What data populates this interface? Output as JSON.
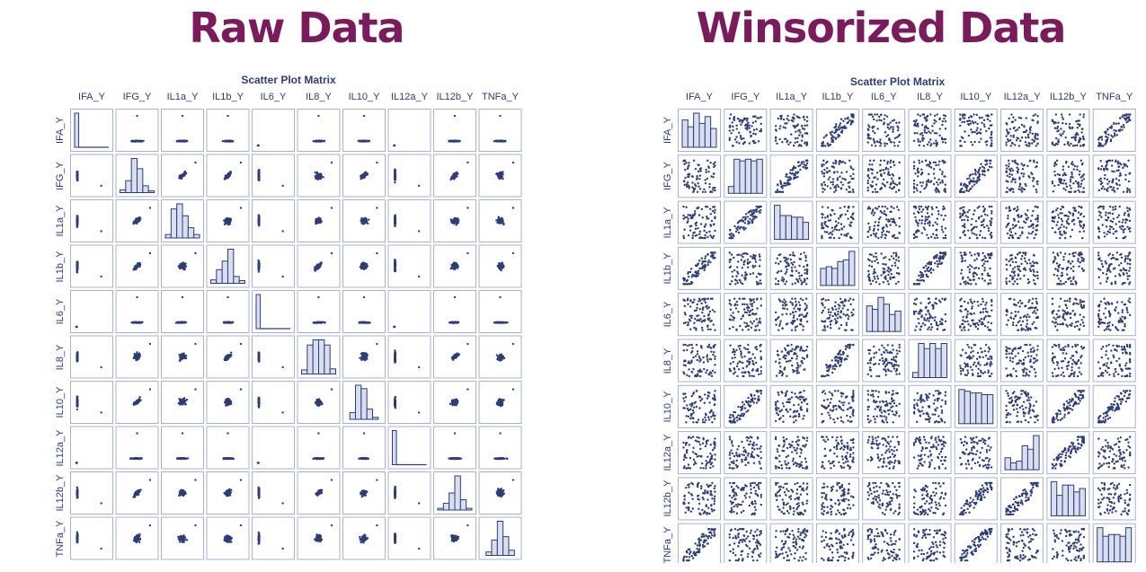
{
  "headings": {
    "left": "Raw Data",
    "right": "Winsorized Data"
  },
  "colors": {
    "heading": "#7a1b5c",
    "plot_ink": "#2d3d78",
    "cell_border": "#a9b1cf",
    "bar_fill": "#d9def0"
  },
  "chart_data": [
    {
      "type": "scatter",
      "subtype": "scatter-plot-matrix",
      "title": "Scatter Plot Matrix",
      "variables": [
        "IFA_Y",
        "IFG_Y",
        "IL1a_Y",
        "IL1b_Y",
        "IL6_Y",
        "IL8_Y",
        "IL10_Y",
        "IL12a_Y",
        "IL12b_Y",
        "TNFa_Y"
      ],
      "diagonal": "histogram",
      "diagonal_histograms": {
        "IFA_Y": [
          1.0,
          0.03,
          0.01,
          0,
          0,
          0,
          0,
          0,
          0,
          0
        ],
        "IFG_Y": [
          0.08,
          0.35,
          1.0,
          0.7,
          0.2,
          0.05
        ],
        "IL1a_Y": [
          0.1,
          0.85,
          1.0,
          0.65,
          0.3,
          0.1
        ],
        "IL1b_Y": [
          0.1,
          0.4,
          0.65,
          1.0,
          0.2,
          0.08
        ],
        "IL6_Y": [
          1.0,
          0.02,
          0.01,
          0,
          0,
          0,
          0,
          0,
          0,
          0
        ],
        "IL8_Y": [
          0.12,
          0.85,
          1.0,
          1.0,
          0.85,
          0.15
        ],
        "IL10_Y": [
          0.2,
          1.0,
          0.9,
          0.3,
          0.06
        ],
        "IL12a_Y": [
          1.0,
          0.02,
          0.01,
          0,
          0,
          0,
          0,
          0,
          0,
          0
        ],
        "IL12b_Y": [
          0.05,
          0.2,
          0.5,
          1.0,
          0.3,
          0.05
        ],
        "TNFa_Y": [
          0.1,
          0.45,
          1.0,
          0.55,
          0.15
        ]
      },
      "outlier_variables": [
        "IFA_Y",
        "IL6_Y",
        "IL12a_Y"
      ],
      "correlated_pairs": [
        [
          "IFG_Y",
          "IL1a_Y"
        ],
        [
          "IFG_Y",
          "IL1b_Y"
        ],
        [
          "IFG_Y",
          "IL10_Y"
        ],
        [
          "IL1b_Y",
          "IL8_Y"
        ],
        [
          "IFG_Y",
          "IL12b_Y"
        ],
        [
          "IL8_Y",
          "IL12b_Y"
        ]
      ],
      "grid": false
    },
    {
      "type": "scatter",
      "subtype": "scatter-plot-matrix",
      "title": "Scatter Plot Matrix",
      "variables": [
        "IFA_Y",
        "IFG_Y",
        "IL1a_Y",
        "IL1b_Y",
        "IL6_Y",
        "IL8_Y",
        "IL10_Y",
        "IL12a_Y",
        "IL12b_Y",
        "TNFa_Y"
      ],
      "diagonal": "histogram",
      "diagonal_histograms": {
        "IFA_Y": [
          0.8,
          0.6,
          1.0,
          0.7,
          0.9,
          0.55
        ],
        "IFG_Y": [
          0.2,
          1.0,
          0.95,
          1.0,
          0.95,
          1.0
        ],
        "IL1a_Y": [
          1.0,
          0.7,
          0.7,
          0.65,
          0.65,
          0.5
        ],
        "IL1b_Y": [
          0.5,
          0.55,
          0.5,
          0.7,
          0.75,
          1.0
        ],
        "IL6_Y": [
          0.75,
          0.65,
          1.0,
          0.8,
          0.5,
          0.6
        ],
        "IL8_Y": [
          0.15,
          1.0,
          0.85,
          1.0,
          0.85,
          1.0
        ],
        "IL10_Y": [
          1.0,
          0.95,
          0.9,
          0.9,
          0.85,
          0.85
        ],
        "IL12a_Y": [
          0.35,
          0.2,
          0.25,
          0.7,
          0.6,
          1.0
        ],
        "IL12b_Y": [
          1.0,
          0.6,
          0.9,
          0.9,
          0.7,
          0.8
        ],
        "TNFa_Y": [
          1.0,
          0.75,
          0.8,
          0.8,
          0.75,
          1.0
        ]
      },
      "correlated_pairs": [
        [
          "IFA_Y",
          "IL1b_Y"
        ],
        [
          "IFA_Y",
          "TNFa_Y"
        ],
        [
          "IFG_Y",
          "IL1a_Y"
        ],
        [
          "IFG_Y",
          "IL10_Y"
        ],
        [
          "IL1b_Y",
          "IL8_Y"
        ],
        [
          "IL10_Y",
          "IL12b_Y"
        ],
        [
          "IL10_Y",
          "TNFa_Y"
        ],
        [
          "IL12a_Y",
          "IL12b_Y"
        ]
      ],
      "grid": false
    }
  ]
}
